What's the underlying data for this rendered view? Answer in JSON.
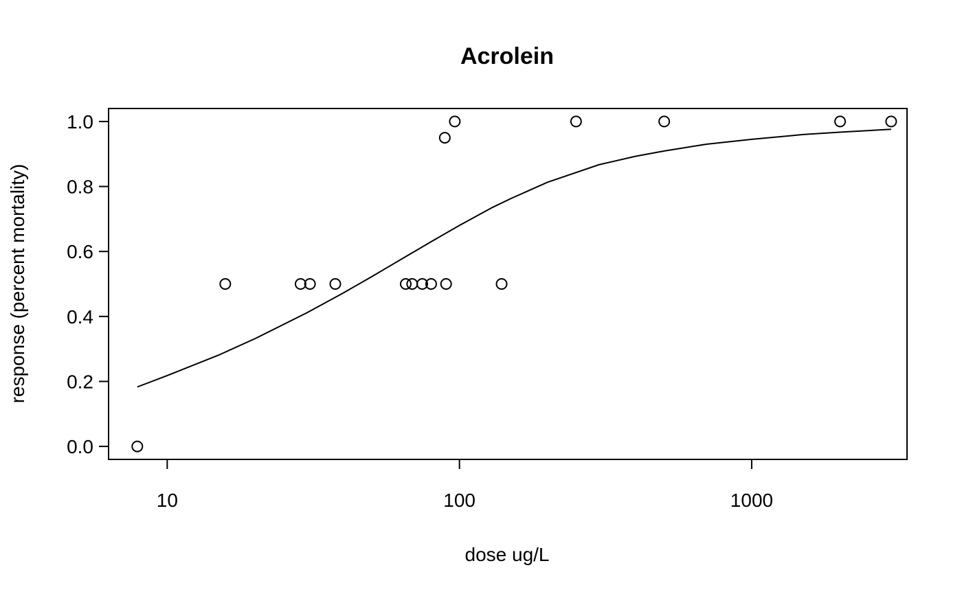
{
  "chart_data": {
    "type": "scatter",
    "title": "Acrolein",
    "xlabel": "dose ug/L",
    "ylabel": "response (percent mortality)",
    "x_scale": "log",
    "xlim": [
      6.3,
      3400
    ],
    "ylim": [
      -0.04,
      1.04
    ],
    "grid": false,
    "legend": "none",
    "x_ticks": [
      {
        "value": 10,
        "label": "10"
      },
      {
        "value": 100,
        "label": "100"
      },
      {
        "value": 1000,
        "label": "1000"
      }
    ],
    "y_ticks": [
      {
        "value": 0.0,
        "label": "0.0"
      },
      {
        "value": 0.2,
        "label": "0.2"
      },
      {
        "value": 0.4,
        "label": "0.4"
      },
      {
        "value": 0.6,
        "label": "0.6"
      },
      {
        "value": 0.8,
        "label": "0.8"
      },
      {
        "value": 1.0,
        "label": "1.0"
      }
    ],
    "points": [
      {
        "x": 7.9,
        "y": 0.0
      },
      {
        "x": 15.8,
        "y": 0.5
      },
      {
        "x": 28.6,
        "y": 0.5
      },
      {
        "x": 30.8,
        "y": 0.5
      },
      {
        "x": 37.6,
        "y": 0.5
      },
      {
        "x": 65.5,
        "y": 0.5
      },
      {
        "x": 68.9,
        "y": 0.5
      },
      {
        "x": 74.6,
        "y": 0.5
      },
      {
        "x": 80.0,
        "y": 0.5
      },
      {
        "x": 90.0,
        "y": 0.5
      },
      {
        "x": 89.1,
        "y": 0.95
      },
      {
        "x": 96.4,
        "y": 1.0
      },
      {
        "x": 139.4,
        "y": 0.5
      },
      {
        "x": 250.6,
        "y": 1.0
      },
      {
        "x": 501.9,
        "y": 1.0
      },
      {
        "x": 2006.6,
        "y": 1.0
      },
      {
        "x": 3000.0,
        "y": 1.0
      }
    ],
    "fit_curve": {
      "x": [
        7.9,
        10,
        15,
        20,
        30,
        40,
        50,
        60,
        80,
        100,
        130,
        150,
        200,
        300,
        400,
        500,
        700,
        1000,
        1500,
        2000,
        3000
      ],
      "y": [
        0.183,
        0.218,
        0.281,
        0.332,
        0.411,
        0.472,
        0.522,
        0.564,
        0.63,
        0.68,
        0.736,
        0.763,
        0.813,
        0.867,
        0.893,
        0.909,
        0.93,
        0.945,
        0.96,
        0.967,
        0.976
      ]
    }
  }
}
